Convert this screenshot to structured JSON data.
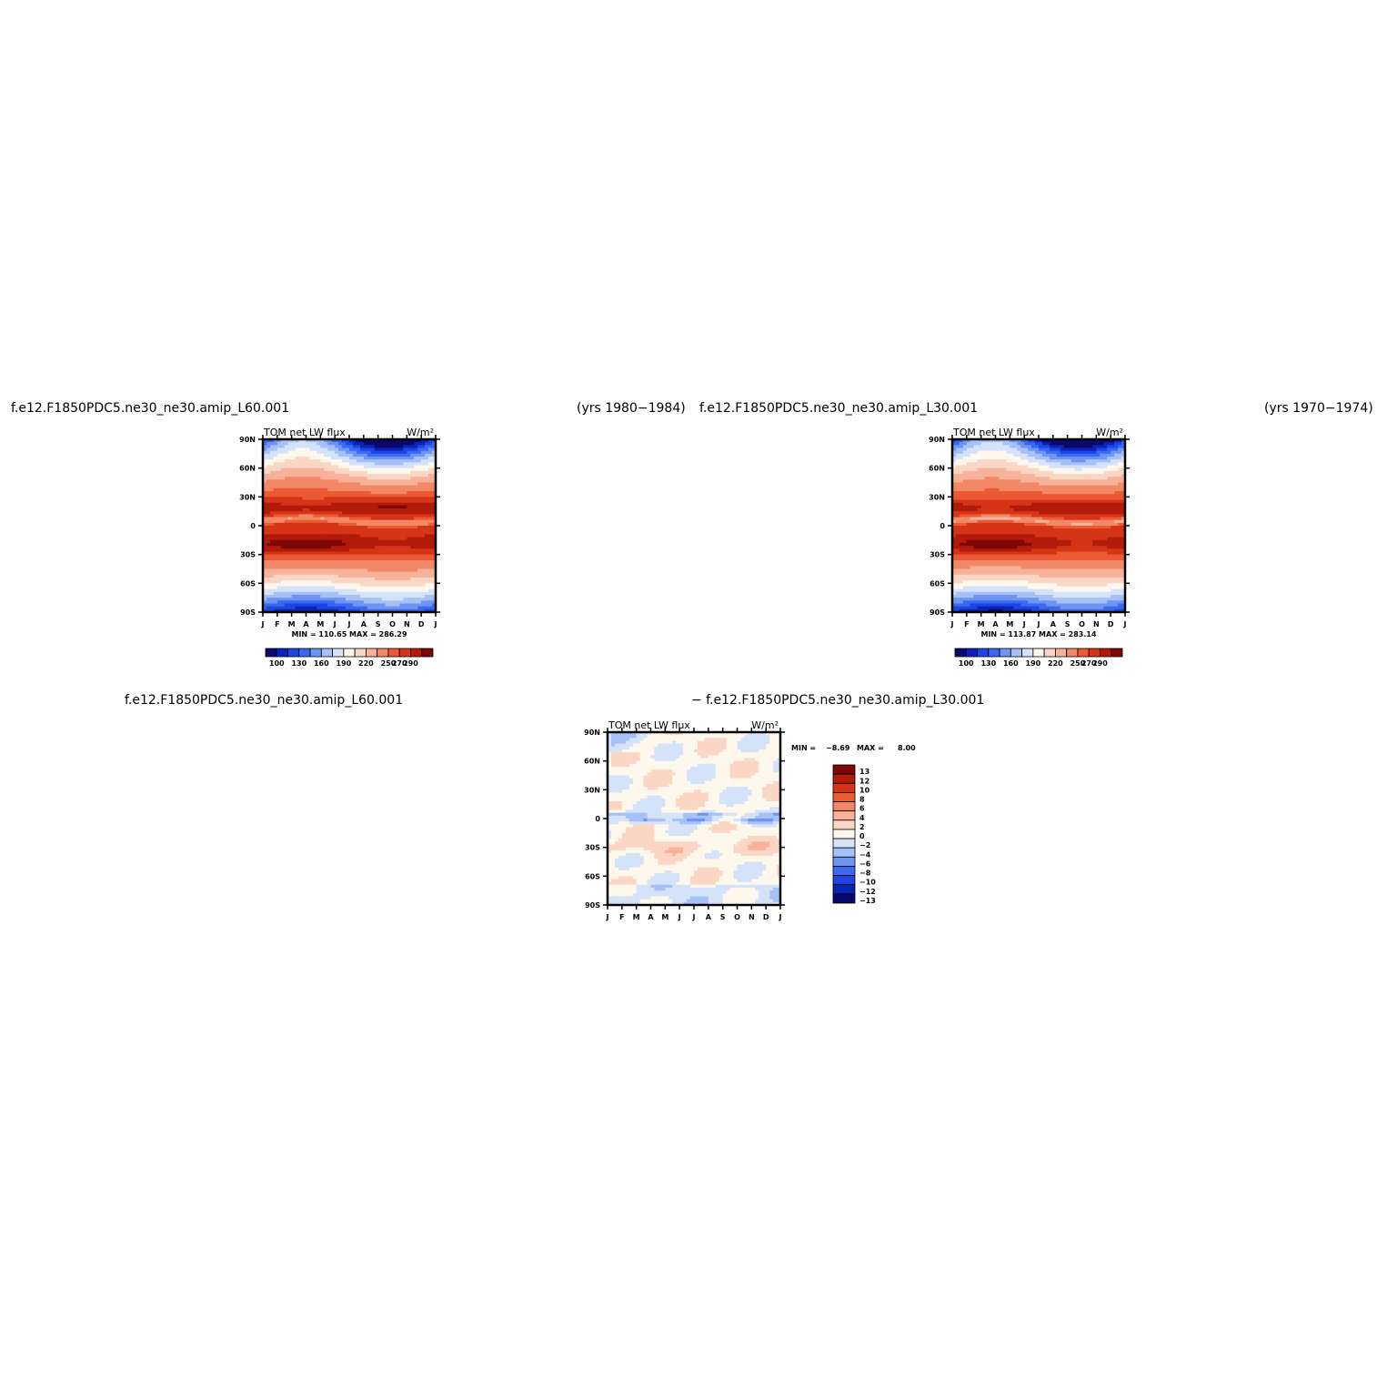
{
  "colors": {
    "abs_scale": [
      "#08086e",
      "#0b22b6",
      "#1d45e6",
      "#3a68f0",
      "#6e95f4",
      "#a6c1f7",
      "#d4e2fa",
      "#fdf7ec",
      "#fcd6c4",
      "#f9b29a",
      "#f38866",
      "#ec5a34",
      "#d63416",
      "#b21a0a",
      "#7e0806"
    ],
    "diff_scale": [
      "#08086e",
      "#0b22b6",
      "#1d45e6",
      "#3a68f0",
      "#6e95f4",
      "#a6c1f7",
      "#d4e2fa",
      "#fdf7ec",
      "#fcd6c4",
      "#f9b29a",
      "#f38866",
      "#ec5a34",
      "#d63416",
      "#b21a0a",
      "#7e0806"
    ]
  },
  "titles": {
    "top_left_case": "f.e12.F1850PDC5.ne30_ne30.amip_L60.001",
    "top_left_years": "(yrs 1980−1984)",
    "top_right_case": "f.e12.F1850PDC5.ne30_ne30.amip_L30.001",
    "top_right_years": "(yrs 1970−1974)",
    "bottom_case_a": "f.e12.F1850PDC5.ne30_ne30.amip_L60.001",
    "bottom_case_b": "− f.e12.F1850PDC5.ne30_ne30.amip_L30.001"
  },
  "chart_data": [
    {
      "type": "heatmap",
      "title": "TOM net LW flux",
      "units": "W/m²",
      "x_ticks": [
        "J",
        "F",
        "M",
        "A",
        "M",
        "J",
        "J",
        "A",
        "S",
        "O",
        "N",
        "D",
        "J"
      ],
      "y_ticks": [
        "90N",
        "60N",
        "30N",
        "0",
        "30S",
        "60S",
        "90S"
      ],
      "stats": "MIN = 110.65 MAX = 286.29",
      "min": 110.65,
      "max": 286.29,
      "colorbar_labels": [
        "100",
        "130",
        "160",
        "190",
        "220",
        "250",
        "270",
        "290"
      ],
      "levels": [
        100,
        115,
        130,
        145,
        160,
        175,
        190,
        205,
        220,
        235,
        250,
        260,
        270,
        280,
        290
      ],
      "legend_position": "bottom"
    },
    {
      "type": "heatmap",
      "title": "TOM net LW flux",
      "units": "W/m²",
      "x_ticks": [
        "J",
        "F",
        "M",
        "A",
        "M",
        "J",
        "J",
        "A",
        "S",
        "O",
        "N",
        "D",
        "J"
      ],
      "y_ticks": [
        "90N",
        "60N",
        "30N",
        "0",
        "30S",
        "60S",
        "90S"
      ],
      "stats": "MIN = 113.87 MAX = 283.14",
      "min": 113.87,
      "max": 283.14,
      "colorbar_labels": [
        "100",
        "130",
        "160",
        "190",
        "220",
        "250",
        "270",
        "290"
      ],
      "levels": [
        100,
        115,
        130,
        145,
        160,
        175,
        190,
        205,
        220,
        235,
        250,
        260,
        270,
        280,
        290
      ],
      "legend_position": "bottom"
    },
    {
      "type": "heatmap",
      "title": "TOM net LW flux",
      "units": "W/m²",
      "x_ticks": [
        "J",
        "F",
        "M",
        "A",
        "M",
        "J",
        "J",
        "A",
        "S",
        "O",
        "N",
        "D",
        "J"
      ],
      "y_ticks": [
        "90N",
        "60N",
        "30N",
        "0",
        "30S",
        "60S",
        "90S"
      ],
      "stats_min_label": "MIN =",
      "stats_min_value": "−8.69",
      "stats_max_label": "MAX =",
      "stats_max_value": "8.00",
      "min": -8.69,
      "max": 8.0,
      "colorbar_labels": [
        "13",
        "12",
        "10",
        "8",
        "6",
        "4",
        "2",
        "0",
        "−2",
        "−4",
        "−6",
        "−8",
        "−10",
        "−12",
        "−13"
      ],
      "legend_position": "right"
    }
  ]
}
